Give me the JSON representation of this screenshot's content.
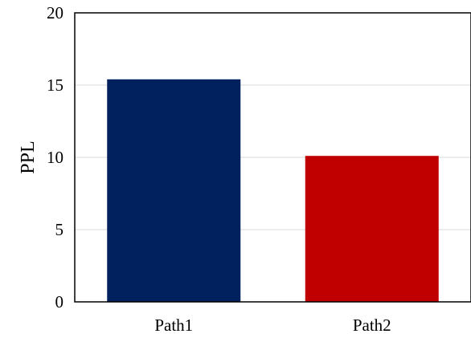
{
  "chart_data": {
    "type": "bar",
    "categories": [
      "Path1",
      "Path2"
    ],
    "values": [
      15.4,
      10.1
    ],
    "colors": [
      "#00215e",
      "#c00000"
    ],
    "ylabel": "PPL",
    "xlabel": "",
    "title": "",
    "ylim": [
      0,
      20
    ],
    "yticks": [
      "0",
      "5",
      "10",
      "15",
      "20"
    ],
    "grid": true,
    "legend": "none"
  }
}
